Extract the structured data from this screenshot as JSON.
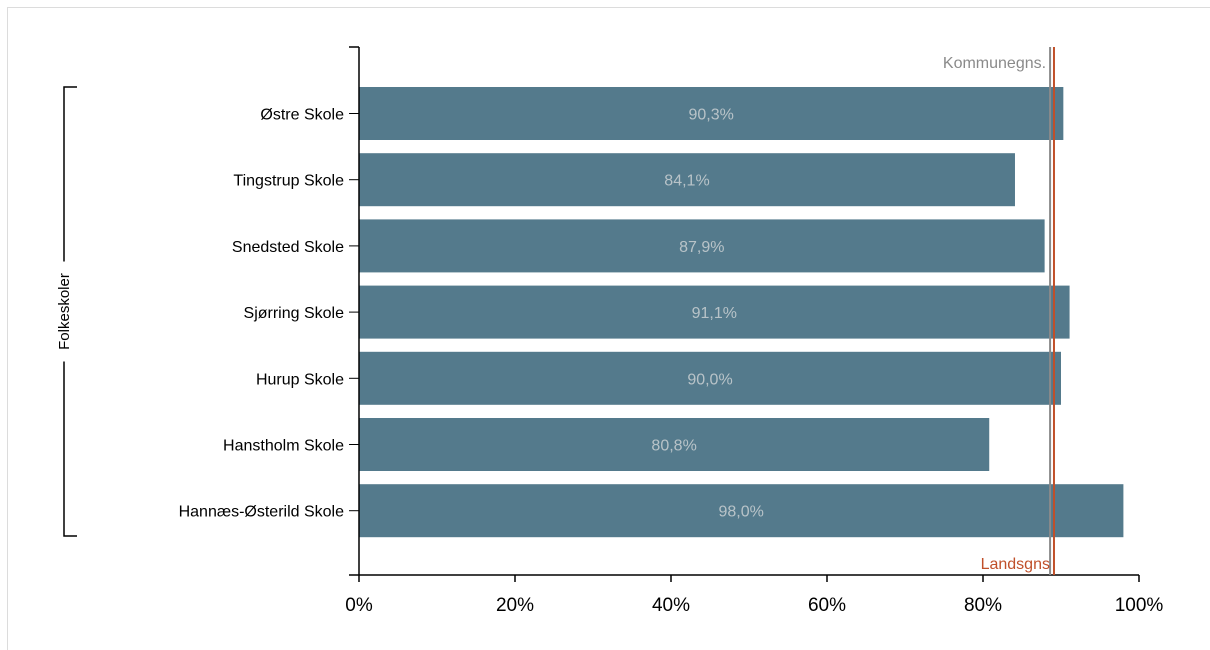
{
  "chart_data": {
    "type": "bar",
    "orientation": "horizontal",
    "group_label": "Folkeskoler",
    "categories": [
      "Østre Skole",
      "Tingstrup Skole",
      "Snedsted Skole",
      "Sjørring Skole",
      "Hurup Skole",
      "Hanstholm Skole",
      "Hannæs-Østerild Skole"
    ],
    "values": [
      90.3,
      84.1,
      87.9,
      91.1,
      90.0,
      80.8,
      98.0
    ],
    "data_labels": [
      "90,3%",
      "84,1%",
      "87,9%",
      "91,1%",
      "90,0%",
      "80,8%",
      "98,0%"
    ],
    "xlim": [
      0,
      100
    ],
    "x_ticks": [
      0,
      20,
      40,
      60,
      80,
      100
    ],
    "x_tick_labels": [
      "0%",
      "20%",
      "40%",
      "60%",
      "80%",
      "100%"
    ],
    "bar_color": "#547a8c",
    "reference_lines": [
      {
        "label": "Kommunegns.",
        "value": 88.6,
        "color": "#8a8a8a",
        "label_position": "top"
      },
      {
        "label": "Landsgns",
        "value": 89.1,
        "color": "#c0502a",
        "label_position": "bottom"
      }
    ],
    "grid": false,
    "legend": "none"
  }
}
